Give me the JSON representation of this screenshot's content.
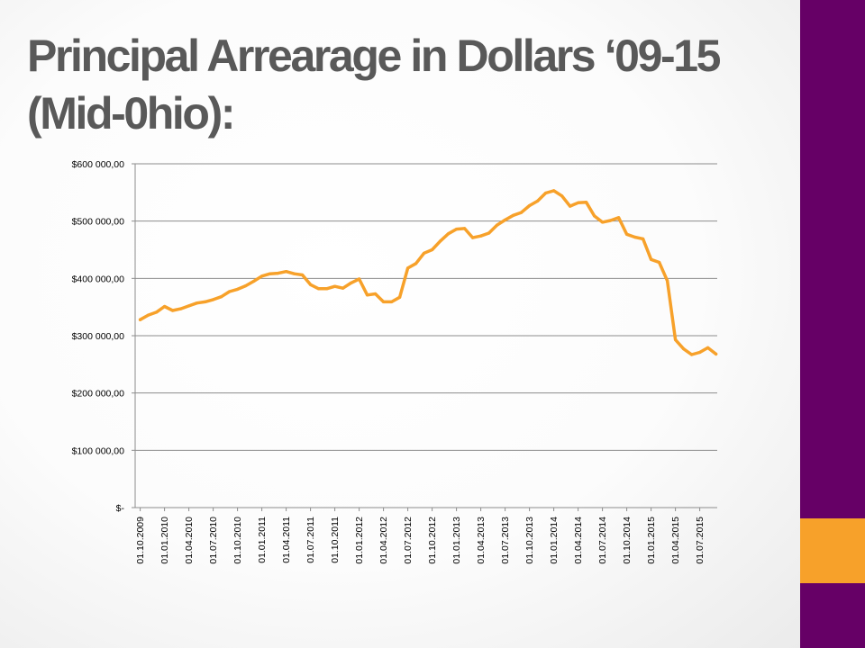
{
  "slide": {
    "title_line1": "Principal Arrearage in Dollars ‘09-15",
    "title_line2": "(Mid-0hio):",
    "colors": {
      "side_bar": "#660066",
      "accent": "#f7a12a",
      "title": "#595959"
    }
  },
  "chart_data": {
    "type": "line",
    "title": "",
    "xlabel": "",
    "ylabel": "",
    "ylim": [
      0,
      600000
    ],
    "y_ticks": [
      0,
      100000,
      200000,
      300000,
      400000,
      500000,
      600000
    ],
    "y_tick_labels": [
      "$-",
      "$100 000,00",
      "$200 000,00",
      "$300 000,00",
      "$400 000,00",
      "$500 000,00",
      "$600 000,00"
    ],
    "x_tick_labels": [
      "01.10.2009",
      "01.01.2010",
      "01.04.2010",
      "01.07.2010",
      "01.10.2010",
      "01.01.2011",
      "01.04.2011",
      "01.07.2011",
      "01.10.2011",
      "01.01.2012",
      "01.04.2012",
      "01.07.2012",
      "01.10.2012",
      "01.01.2013",
      "01.04.2013",
      "01.07.2013",
      "01.10.2013",
      "01.01.2014",
      "01.04.2014",
      "01.07.2014",
      "01.10.2014",
      "01.01.2015",
      "01.04.2015",
      "01.07.2015"
    ],
    "grid": "horizontal",
    "legend": "none",
    "series": [
      {
        "color": "#f7a12a",
        "x": [
          "2009-10",
          "2009-11",
          "2009-12",
          "2010-01",
          "2010-02",
          "2010-03",
          "2010-04",
          "2010-05",
          "2010-06",
          "2010-07",
          "2010-08",
          "2010-09",
          "2010-10",
          "2010-11",
          "2010-12",
          "2011-01",
          "2011-02",
          "2011-03",
          "2011-04",
          "2011-05",
          "2011-06",
          "2011-07",
          "2011-08",
          "2011-09",
          "2011-10",
          "2011-11",
          "2011-12",
          "2012-01",
          "2012-02",
          "2012-03",
          "2012-04",
          "2012-05",
          "2012-06",
          "2012-07",
          "2012-08",
          "2012-09",
          "2012-10",
          "2012-11",
          "2012-12",
          "2013-01",
          "2013-02",
          "2013-03",
          "2013-04",
          "2013-05",
          "2013-06",
          "2013-07",
          "2013-08",
          "2013-09",
          "2013-10",
          "2013-11",
          "2013-12",
          "2014-01",
          "2014-02",
          "2014-03",
          "2014-04",
          "2014-05",
          "2014-06",
          "2014-07",
          "2014-08",
          "2014-09",
          "2014-10",
          "2014-11",
          "2014-12",
          "2015-01",
          "2015-02",
          "2015-03",
          "2015-04",
          "2015-05",
          "2015-06",
          "2015-07",
          "2015-08",
          "2015-09"
        ],
        "values": [
          328000,
          336000,
          341000,
          351000,
          344000,
          347000,
          352000,
          357000,
          359000,
          363000,
          368000,
          377000,
          381000,
          387000,
          395000,
          404000,
          408000,
          409000,
          412000,
          408000,
          406000,
          389000,
          382000,
          382000,
          386000,
          383000,
          392000,
          399000,
          371000,
          373000,
          359000,
          359000,
          367000,
          418000,
          426000,
          444000,
          450000,
          465000,
          478000,
          486000,
          487000,
          471000,
          474000,
          479000,
          493000,
          502000,
          510000,
          515000,
          527000,
          535000,
          549000,
          553000,
          544000,
          526000,
          532000,
          533000,
          509000,
          498000,
          501000,
          506000,
          477000,
          472000,
          469000,
          433000,
          428000,
          396000,
          293000,
          277000,
          267000,
          271000,
          279000,
          268000
        ]
      }
    ]
  }
}
